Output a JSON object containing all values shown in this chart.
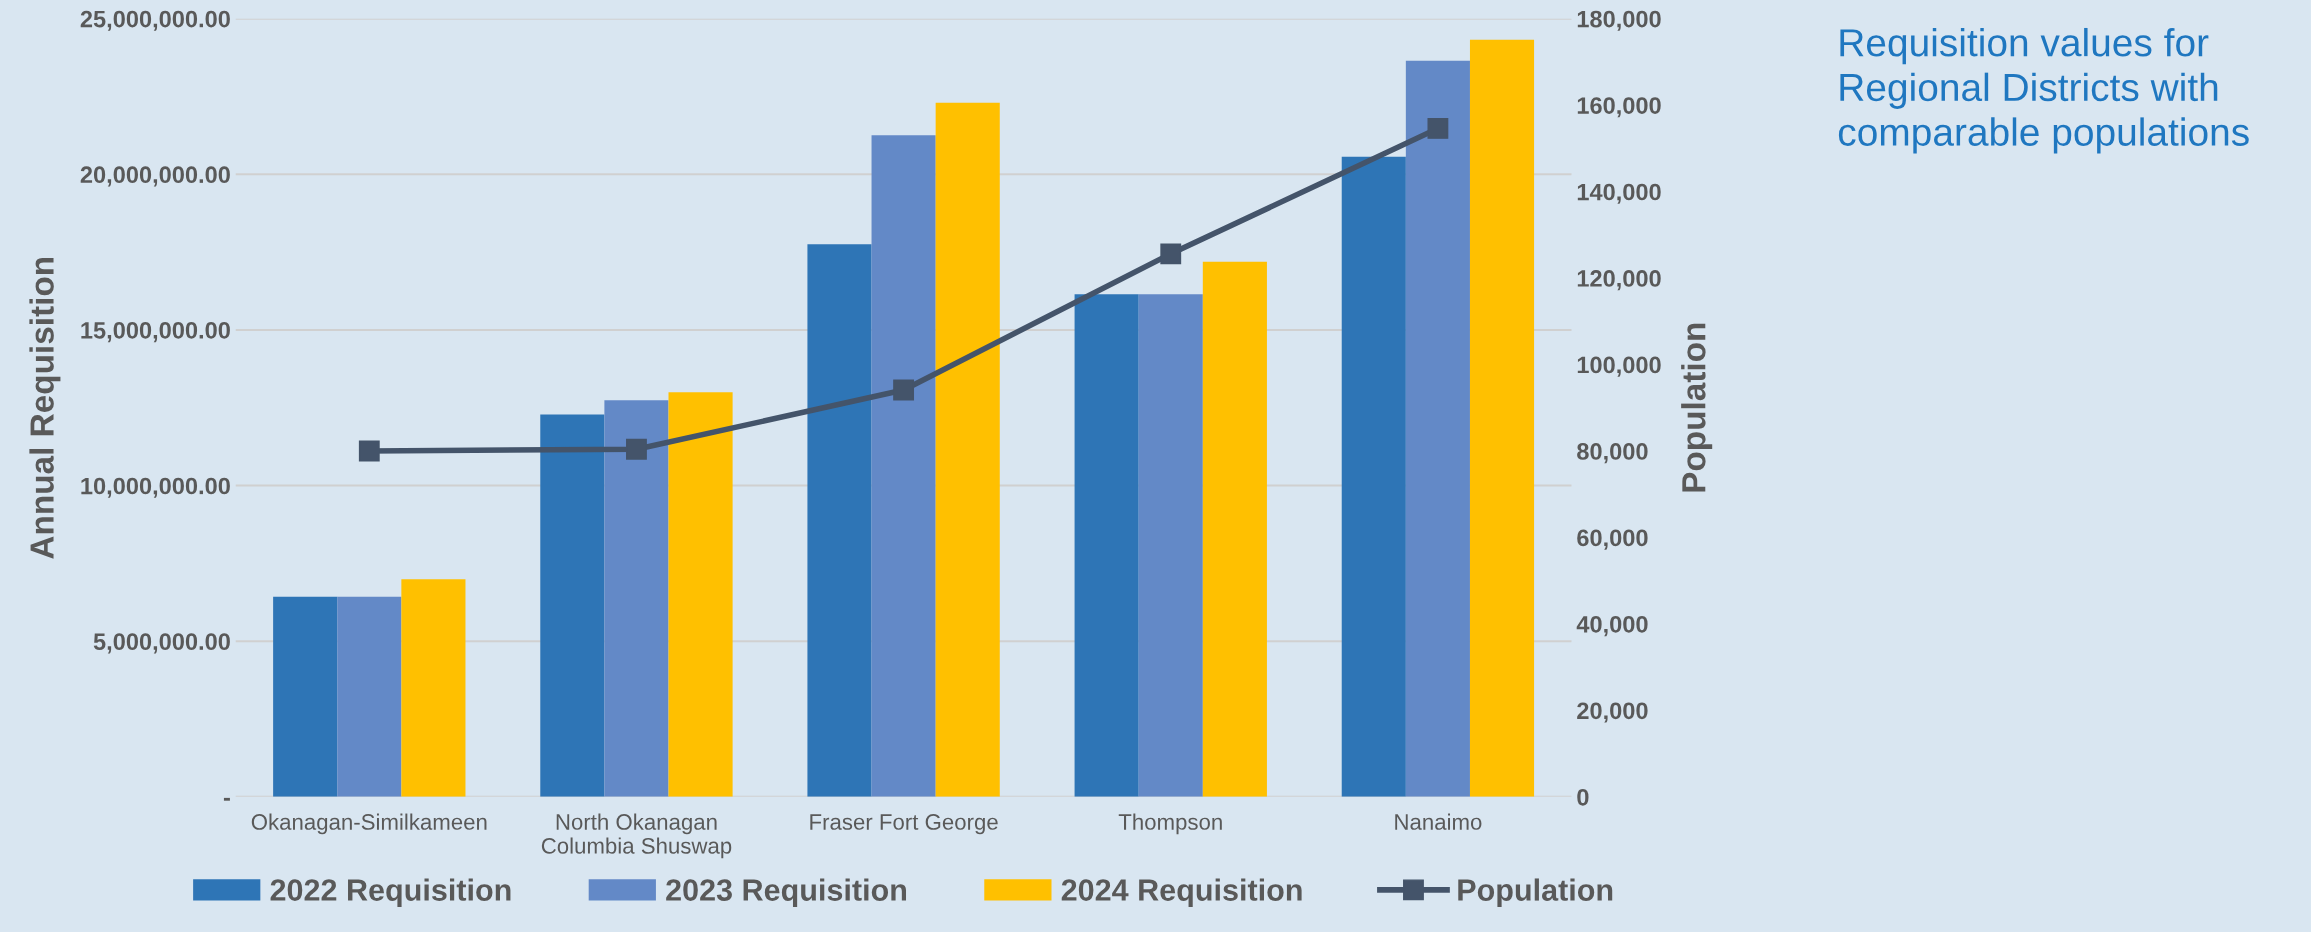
{
  "chart_data": {
    "type": "bar",
    "title": "Requisition values for\nRegional Districts with\ncomparable populations",
    "ylabel": "Annual Requisition",
    "y2label": "Population",
    "categories": [
      "Okanagan-Similkameen",
      "North Okanagan\nColumbia Shuswap",
      "Fraser Fort George",
      "Thompson",
      "Nanaimo"
    ],
    "series": [
      {
        "name": "2022 Requisition",
        "color": "#2e75b6",
        "values": [
          6430000,
          12280000,
          17750000,
          16150000,
          20560000
        ]
      },
      {
        "name": "2023 Requisition",
        "color": "#6389c7",
        "values": [
          6430000,
          12740000,
          21250000,
          16150000,
          23650000
        ]
      },
      {
        "name": "2024 Requisition",
        "color": "#ffc000",
        "values": [
          6990000,
          13000000,
          22300000,
          17190000,
          24320000
        ]
      },
      {
        "name": "Population",
        "type": "line",
        "axis": "y2",
        "color": "#44546a",
        "marker": "square",
        "values": [
          80000,
          80400,
          94100,
          125600,
          154600
        ]
      }
    ],
    "ylim": [
      0,
      25000000
    ],
    "yticks": [
      {
        "value": 0,
        "label": "-"
      },
      {
        "value": 5000000,
        "label": "5,000,000.00"
      },
      {
        "value": 10000000,
        "label": "10,000,000.00"
      },
      {
        "value": 15000000,
        "label": "15,000,000.00"
      },
      {
        "value": 20000000,
        "label": "20,000,000.00"
      },
      {
        "value": 25000000,
        "label": "25,000,000.00"
      }
    ],
    "y2lim": [
      0,
      180000
    ],
    "y2ticks": [
      0,
      {
        "value": 20000,
        "label": "20,000"
      },
      {
        "value": 40000,
        "label": "40,000"
      },
      {
        "value": 60000,
        "label": "60,000"
      },
      {
        "value": 80000,
        "label": "80,000"
      },
      {
        "value": 100000,
        "label": "100,000"
      },
      {
        "value": 120000,
        "label": "120,000"
      },
      {
        "value": 140000,
        "label": "140,000"
      },
      {
        "value": 160000,
        "label": "160,000"
      },
      {
        "value": 180000,
        "label": "180,000"
      }
    ],
    "grid": "y",
    "legend": "bottom"
  }
}
